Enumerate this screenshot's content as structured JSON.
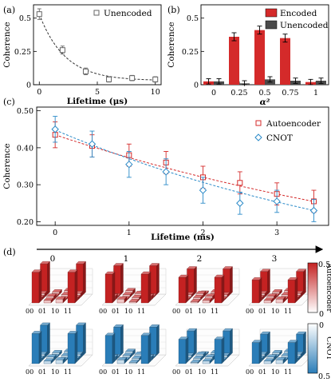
{
  "panel_labels": [
    "(a)",
    "(b)",
    "(c)",
    "(d)"
  ],
  "chart_data": [
    {
      "panel": "(a)",
      "type": "scatter",
      "xlabel": "Lifetime (μs)",
      "ylabel": "Coherence",
      "xlim": [
        -0.5,
        10.5
      ],
      "ylim": [
        0,
        0.6
      ],
      "xticks": [
        "0",
        "5",
        "10"
      ],
      "yticks": [
        "0",
        "0.25",
        "0.5"
      ],
      "legend": "top-right",
      "series": [
        {
          "name": "Unencoded",
          "color": "#666666",
          "marker": "square-open",
          "x": [
            0,
            2,
            4,
            6,
            8,
            10
          ],
          "y": [
            0.53,
            0.26,
            0.1,
            0.04,
            0.05,
            0.04
          ],
          "err": [
            0.04,
            0.03,
            0.025,
            0.02,
            0.02,
            0.02
          ]
        }
      ],
      "fit": {
        "style": "dashed",
        "color": "#333333",
        "model": "0.03 + 0.5*exp(-t/2.2)"
      }
    },
    {
      "panel": "(b)",
      "type": "bar",
      "xlabel": "α²",
      "ylabel": "Coherence",
      "ylim": [
        0,
        0.6
      ],
      "categories": [
        "0",
        "0.25",
        "0.5",
        "0.75",
        "1"
      ],
      "yticks": [
        "0",
        "0.25",
        "0.5"
      ],
      "legend": "top-right",
      "series": [
        {
          "name": "Encoded",
          "color": "#d42a2a",
          "values": [
            0.025,
            0.36,
            0.41,
            0.35,
            0.02
          ],
          "err": [
            0.02,
            0.03,
            0.03,
            0.03,
            0.02
          ]
        },
        {
          "name": "Unencoded",
          "color": "#4a4a4a",
          "values": [
            0.025,
            0.01,
            0.04,
            0.03,
            0.03
          ],
          "err": [
            0.02,
            0.02,
            0.02,
            0.02,
            0.02
          ]
        }
      ]
    },
    {
      "panel": "(c)",
      "type": "scatter",
      "xlabel": "Lifetime (ms)",
      "ylabel": "Coherence",
      "xlim": [
        -0.25,
        3.7
      ],
      "ylim": [
        0.19,
        0.51
      ],
      "xticks": [
        "0",
        "1",
        "2",
        "3"
      ],
      "yticks": [
        "0.20",
        "0.30",
        "0.40",
        "0.50"
      ],
      "legend": "top-right",
      "series": [
        {
          "name": "Autoencoder",
          "color": "#d42a2a",
          "marker": "square-open",
          "x": [
            0,
            0.5,
            1,
            1.5,
            2,
            2.5,
            3,
            3.5
          ],
          "y": [
            0.435,
            0.405,
            0.38,
            0.36,
            0.32,
            0.305,
            0.275,
            0.255
          ],
          "err": [
            0.035,
            0.03,
            0.03,
            0.03,
            0.03,
            0.03,
            0.03,
            0.03
          ],
          "fit": {
            "style": "dashed",
            "a": 0.435,
            "b": 0.153
          }
        },
        {
          "name": "CNOT",
          "color": "#2a8ac8",
          "marker": "diamond-open",
          "x": [
            0,
            0.5,
            1,
            1.5,
            2,
            2.5,
            3,
            3.5
          ],
          "y": [
            0.45,
            0.41,
            0.355,
            0.335,
            0.285,
            0.25,
            0.255,
            0.23
          ],
          "err": [
            0.035,
            0.035,
            0.035,
            0.035,
            0.035,
            0.03,
            0.03,
            0.03
          ],
          "fit": {
            "style": "dashed",
            "a": 0.448,
            "b": 0.19
          }
        }
      ]
    },
    {
      "panel": "(d)",
      "type": "heatmap",
      "columns": [
        "0",
        "1",
        "2",
        "3"
      ],
      "rows": [
        "Autoencoder",
        "CNOT"
      ],
      "basis": [
        "00",
        "01",
        "10",
        "11"
      ],
      "colorbar_ticks": [
        "0",
        "0.5"
      ],
      "colors": {
        "Autoencoder": "#c42222",
        "CNOT": "#2a7db8"
      },
      "corner_values": [
        [
          0.48,
          0.45,
          0.4,
          0.36
        ],
        [
          0.47,
          0.44,
          0.38,
          0.33
        ]
      ]
    }
  ]
}
